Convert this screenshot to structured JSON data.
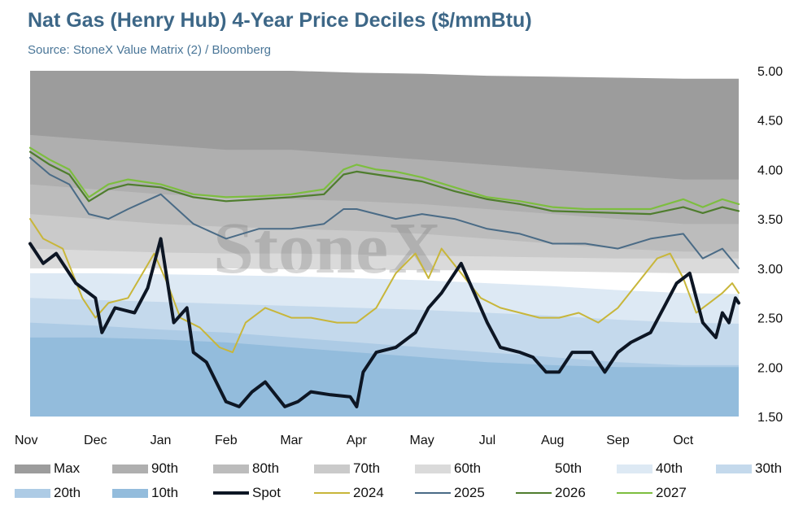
{
  "title": "Nat Gas (Henry Hub) 4-Year Price Deciles ($/mmBtu)",
  "subtitle": "Source: StoneX Value Matrix (2) / Bloomberg",
  "watermark": "StoneX",
  "colors": {
    "Max": "#9c9c9c",
    "90th": "#afafaf",
    "80th": "#bcbcbc",
    "70th": "#cacaca",
    "60th": "#dadada",
    "50th": "#ffffff",
    "40th": "#dde9f4",
    "30th": "#c4d9ec",
    "20th": "#adcbe5",
    "10th": "#93bcdc",
    "Spot": "#0d1624",
    "2024": "#c8b63a",
    "2025": "#4a6b86",
    "2026": "#4f7d2e",
    "2027": "#7dbe3f"
  },
  "chart_data": {
    "type": "area",
    "title": "Nat Gas (Henry Hub) 4-Year Price Deciles ($/mmBtu)",
    "subtitle": "Source: StoneX Value Matrix (2) / Bloomberg",
    "x_label": "",
    "y_label": "",
    "categories": [
      "Nov",
      "Dec",
      "Jan",
      "Feb",
      "Mar",
      "Apr",
      "May",
      "Jul",
      "Aug",
      "Sep",
      "Oct"
    ],
    "category_positions": [
      0,
      1,
      2,
      3,
      4,
      5,
      6,
      7,
      8,
      9,
      10
    ],
    "x_range": [
      0,
      10.85
    ],
    "ylim": [
      1.5,
      5.0
    ],
    "yticks": [
      "5.00",
      "4.50",
      "4.00",
      "3.50",
      "3.00",
      "2.50",
      "2.00",
      "1.50"
    ],
    "ytick_values": [
      5.0,
      4.5,
      4.0,
      3.5,
      3.0,
      2.5,
      2.0,
      1.5
    ],
    "y_axis_side": "right",
    "grid": false,
    "legend_position": "bottom",
    "decile_bands": [
      {
        "name": "Max",
        "upper": [
          5.0,
          5.0,
          5.0,
          5.0,
          5.0,
          4.98,
          4.97,
          4.95,
          4.94,
          4.93,
          4.92,
          4.92
        ]
      },
      {
        "name": "90th",
        "upper": [
          4.35,
          4.3,
          4.25,
          4.2,
          4.2,
          4.15,
          4.1,
          4.05,
          4.0,
          3.95,
          3.9,
          3.9
        ]
      },
      {
        "name": "80th",
        "upper": [
          3.85,
          3.8,
          3.75,
          3.72,
          3.7,
          3.68,
          3.65,
          3.6,
          3.55,
          3.5,
          3.45,
          3.45
        ]
      },
      {
        "name": "70th",
        "upper": [
          3.55,
          3.5,
          3.45,
          3.42,
          3.4,
          3.38,
          3.35,
          3.3,
          3.25,
          3.2,
          3.17,
          3.17
        ]
      },
      {
        "name": "60th",
        "upper": [
          3.2,
          3.18,
          3.16,
          3.15,
          3.15,
          3.14,
          3.13,
          3.12,
          3.11,
          3.1,
          3.1,
          3.1
        ]
      },
      {
        "name": "50th",
        "upper": [
          3.0,
          3.0,
          3.0,
          3.0,
          2.99,
          2.99,
          2.98,
          2.98,
          2.97,
          2.96,
          2.95,
          2.95
        ]
      },
      {
        "name": "40th",
        "upper": [
          2.95,
          2.95,
          2.94,
          2.93,
          2.92,
          2.9,
          2.88,
          2.85,
          2.82,
          2.78,
          2.75,
          2.74
        ]
      },
      {
        "name": "30th",
        "upper": [
          2.7,
          2.68,
          2.66,
          2.64,
          2.62,
          2.6,
          2.58,
          2.55,
          2.52,
          2.48,
          2.45,
          2.44
        ]
      },
      {
        "name": "20th",
        "upper": [
          2.45,
          2.42,
          2.38,
          2.35,
          2.3,
          2.25,
          2.2,
          2.15,
          2.1,
          2.05,
          2.02,
          2.02
        ]
      },
      {
        "name": "10th",
        "upper": [
          2.3,
          2.3,
          2.28,
          2.25,
          2.2,
          2.15,
          2.1,
          2.05,
          2.02,
          2.0,
          2.0,
          2.0
        ]
      }
    ],
    "band_x": [
      0,
      1,
      2,
      3,
      4,
      5,
      6,
      7,
      8,
      9,
      10,
      10.85
    ],
    "series": [
      {
        "name": "2027",
        "x": [
          0,
          0.3,
          0.6,
          0.9,
          1.2,
          1.5,
          2.0,
          2.5,
          3.0,
          3.5,
          4.0,
          4.5,
          4.8,
          5.0,
          5.3,
          5.6,
          6.0,
          6.5,
          7.0,
          7.5,
          8.0,
          8.5,
          9.0,
          9.5,
          10.0,
          10.3,
          10.6,
          10.85
        ],
        "y": [
          4.22,
          4.1,
          4.0,
          3.72,
          3.85,
          3.9,
          3.85,
          3.75,
          3.72,
          3.73,
          3.75,
          3.8,
          4.0,
          4.05,
          4.0,
          3.98,
          3.92,
          3.82,
          3.72,
          3.68,
          3.62,
          3.6,
          3.6,
          3.6,
          3.7,
          3.62,
          3.7,
          3.65
        ]
      },
      {
        "name": "2026",
        "x": [
          0,
          0.3,
          0.6,
          0.9,
          1.2,
          1.5,
          2.0,
          2.5,
          3.0,
          3.5,
          4.0,
          4.5,
          4.8,
          5.0,
          5.3,
          5.6,
          6.0,
          6.5,
          7.0,
          7.5,
          8.0,
          8.5,
          9.0,
          9.5,
          10.0,
          10.3,
          10.6,
          10.85
        ],
        "y": [
          4.18,
          4.05,
          3.95,
          3.68,
          3.8,
          3.85,
          3.82,
          3.72,
          3.68,
          3.7,
          3.72,
          3.75,
          3.95,
          3.98,
          3.95,
          3.92,
          3.88,
          3.78,
          3.7,
          3.65,
          3.58,
          3.57,
          3.56,
          3.55,
          3.62,
          3.56,
          3.62,
          3.58
        ]
      },
      {
        "name": "2025",
        "x": [
          0,
          0.3,
          0.6,
          0.9,
          1.2,
          1.5,
          2.0,
          2.5,
          3.0,
          3.5,
          4.0,
          4.5,
          4.8,
          5.0,
          5.3,
          5.6,
          6.0,
          6.5,
          7.0,
          7.5,
          8.0,
          8.5,
          9.0,
          9.5,
          10.0,
          10.3,
          10.6,
          10.85
        ],
        "y": [
          4.12,
          3.95,
          3.85,
          3.55,
          3.5,
          3.6,
          3.75,
          3.45,
          3.3,
          3.4,
          3.4,
          3.45,
          3.6,
          3.6,
          3.55,
          3.5,
          3.55,
          3.5,
          3.4,
          3.35,
          3.25,
          3.25,
          3.2,
          3.3,
          3.35,
          3.1,
          3.2,
          3.0
        ]
      },
      {
        "name": "2024",
        "x": [
          0,
          0.2,
          0.5,
          0.8,
          1.0,
          1.2,
          1.5,
          1.9,
          2.1,
          2.3,
          2.6,
          2.9,
          3.1,
          3.3,
          3.6,
          4.0,
          4.3,
          4.7,
          5.0,
          5.3,
          5.6,
          5.9,
          6.1,
          6.3,
          6.6,
          6.9,
          7.2,
          7.5,
          7.8,
          8.1,
          8.4,
          8.7,
          9.0,
          9.3,
          9.6,
          9.8,
          10.0,
          10.2,
          10.4,
          10.6,
          10.75,
          10.85
        ],
        "y": [
          3.5,
          3.3,
          3.2,
          2.7,
          2.5,
          2.65,
          2.7,
          3.15,
          2.85,
          2.5,
          2.4,
          2.2,
          2.15,
          2.45,
          2.6,
          2.5,
          2.5,
          2.45,
          2.45,
          2.6,
          2.95,
          3.15,
          2.9,
          3.2,
          2.95,
          2.7,
          2.6,
          2.55,
          2.5,
          2.5,
          2.55,
          2.45,
          2.6,
          2.85,
          3.1,
          3.15,
          2.9,
          2.55,
          2.65,
          2.75,
          2.85,
          2.75
        ]
      },
      {
        "name": "Spot",
        "x": [
          0,
          0.2,
          0.4,
          0.7,
          1.0,
          1.1,
          1.3,
          1.6,
          1.8,
          2.0,
          2.2,
          2.4,
          2.5,
          2.7,
          3.0,
          3.2,
          3.4,
          3.6,
          3.9,
          4.1,
          4.3,
          4.6,
          4.9,
          5.0,
          5.1,
          5.3,
          5.6,
          5.9,
          6.1,
          6.3,
          6.6,
          6.8,
          7.0,
          7.2,
          7.5,
          7.7,
          7.9,
          8.1,
          8.3,
          8.6,
          8.8,
          9.0,
          9.2,
          9.5,
          9.7,
          9.9,
          10.1,
          10.3,
          10.5,
          10.6,
          10.7,
          10.8,
          10.85
        ],
        "y": [
          3.25,
          3.05,
          3.15,
          2.85,
          2.7,
          2.35,
          2.6,
          2.55,
          2.8,
          3.3,
          2.45,
          2.6,
          2.15,
          2.05,
          1.65,
          1.6,
          1.75,
          1.85,
          1.6,
          1.65,
          1.75,
          1.72,
          1.7,
          1.6,
          1.95,
          2.15,
          2.2,
          2.35,
          2.6,
          2.75,
          3.05,
          2.75,
          2.45,
          2.2,
          2.15,
          2.1,
          1.95,
          1.95,
          2.15,
          2.15,
          1.95,
          2.15,
          2.25,
          2.35,
          2.6,
          2.85,
          2.95,
          2.45,
          2.3,
          2.55,
          2.45,
          2.7,
          2.65
        ]
      }
    ]
  },
  "legend": [
    {
      "label": "Max",
      "kind": "swatch",
      "key": "Max"
    },
    {
      "label": "90th",
      "kind": "swatch",
      "key": "90th"
    },
    {
      "label": "80th",
      "kind": "swatch",
      "key": "80th"
    },
    {
      "label": "70th",
      "kind": "swatch",
      "key": "70th"
    },
    {
      "label": "60th",
      "kind": "swatch",
      "key": "60th"
    },
    {
      "label": "50th",
      "kind": "swatch",
      "key": "50th"
    },
    {
      "label": "40th",
      "kind": "swatch",
      "key": "40th"
    },
    {
      "label": "30th",
      "kind": "swatch",
      "key": "30th"
    },
    {
      "label": "20th",
      "kind": "swatch",
      "key": "20th"
    },
    {
      "label": "10th",
      "kind": "swatch",
      "key": "10th"
    },
    {
      "label": "Spot",
      "kind": "line",
      "key": "Spot"
    },
    {
      "label": "2024",
      "kind": "line",
      "key": "2024"
    },
    {
      "label": "2025",
      "kind": "line",
      "key": "2025"
    },
    {
      "label": "2026",
      "kind": "line",
      "key": "2026"
    },
    {
      "label": "2027",
      "kind": "line",
      "key": "2027"
    }
  ]
}
